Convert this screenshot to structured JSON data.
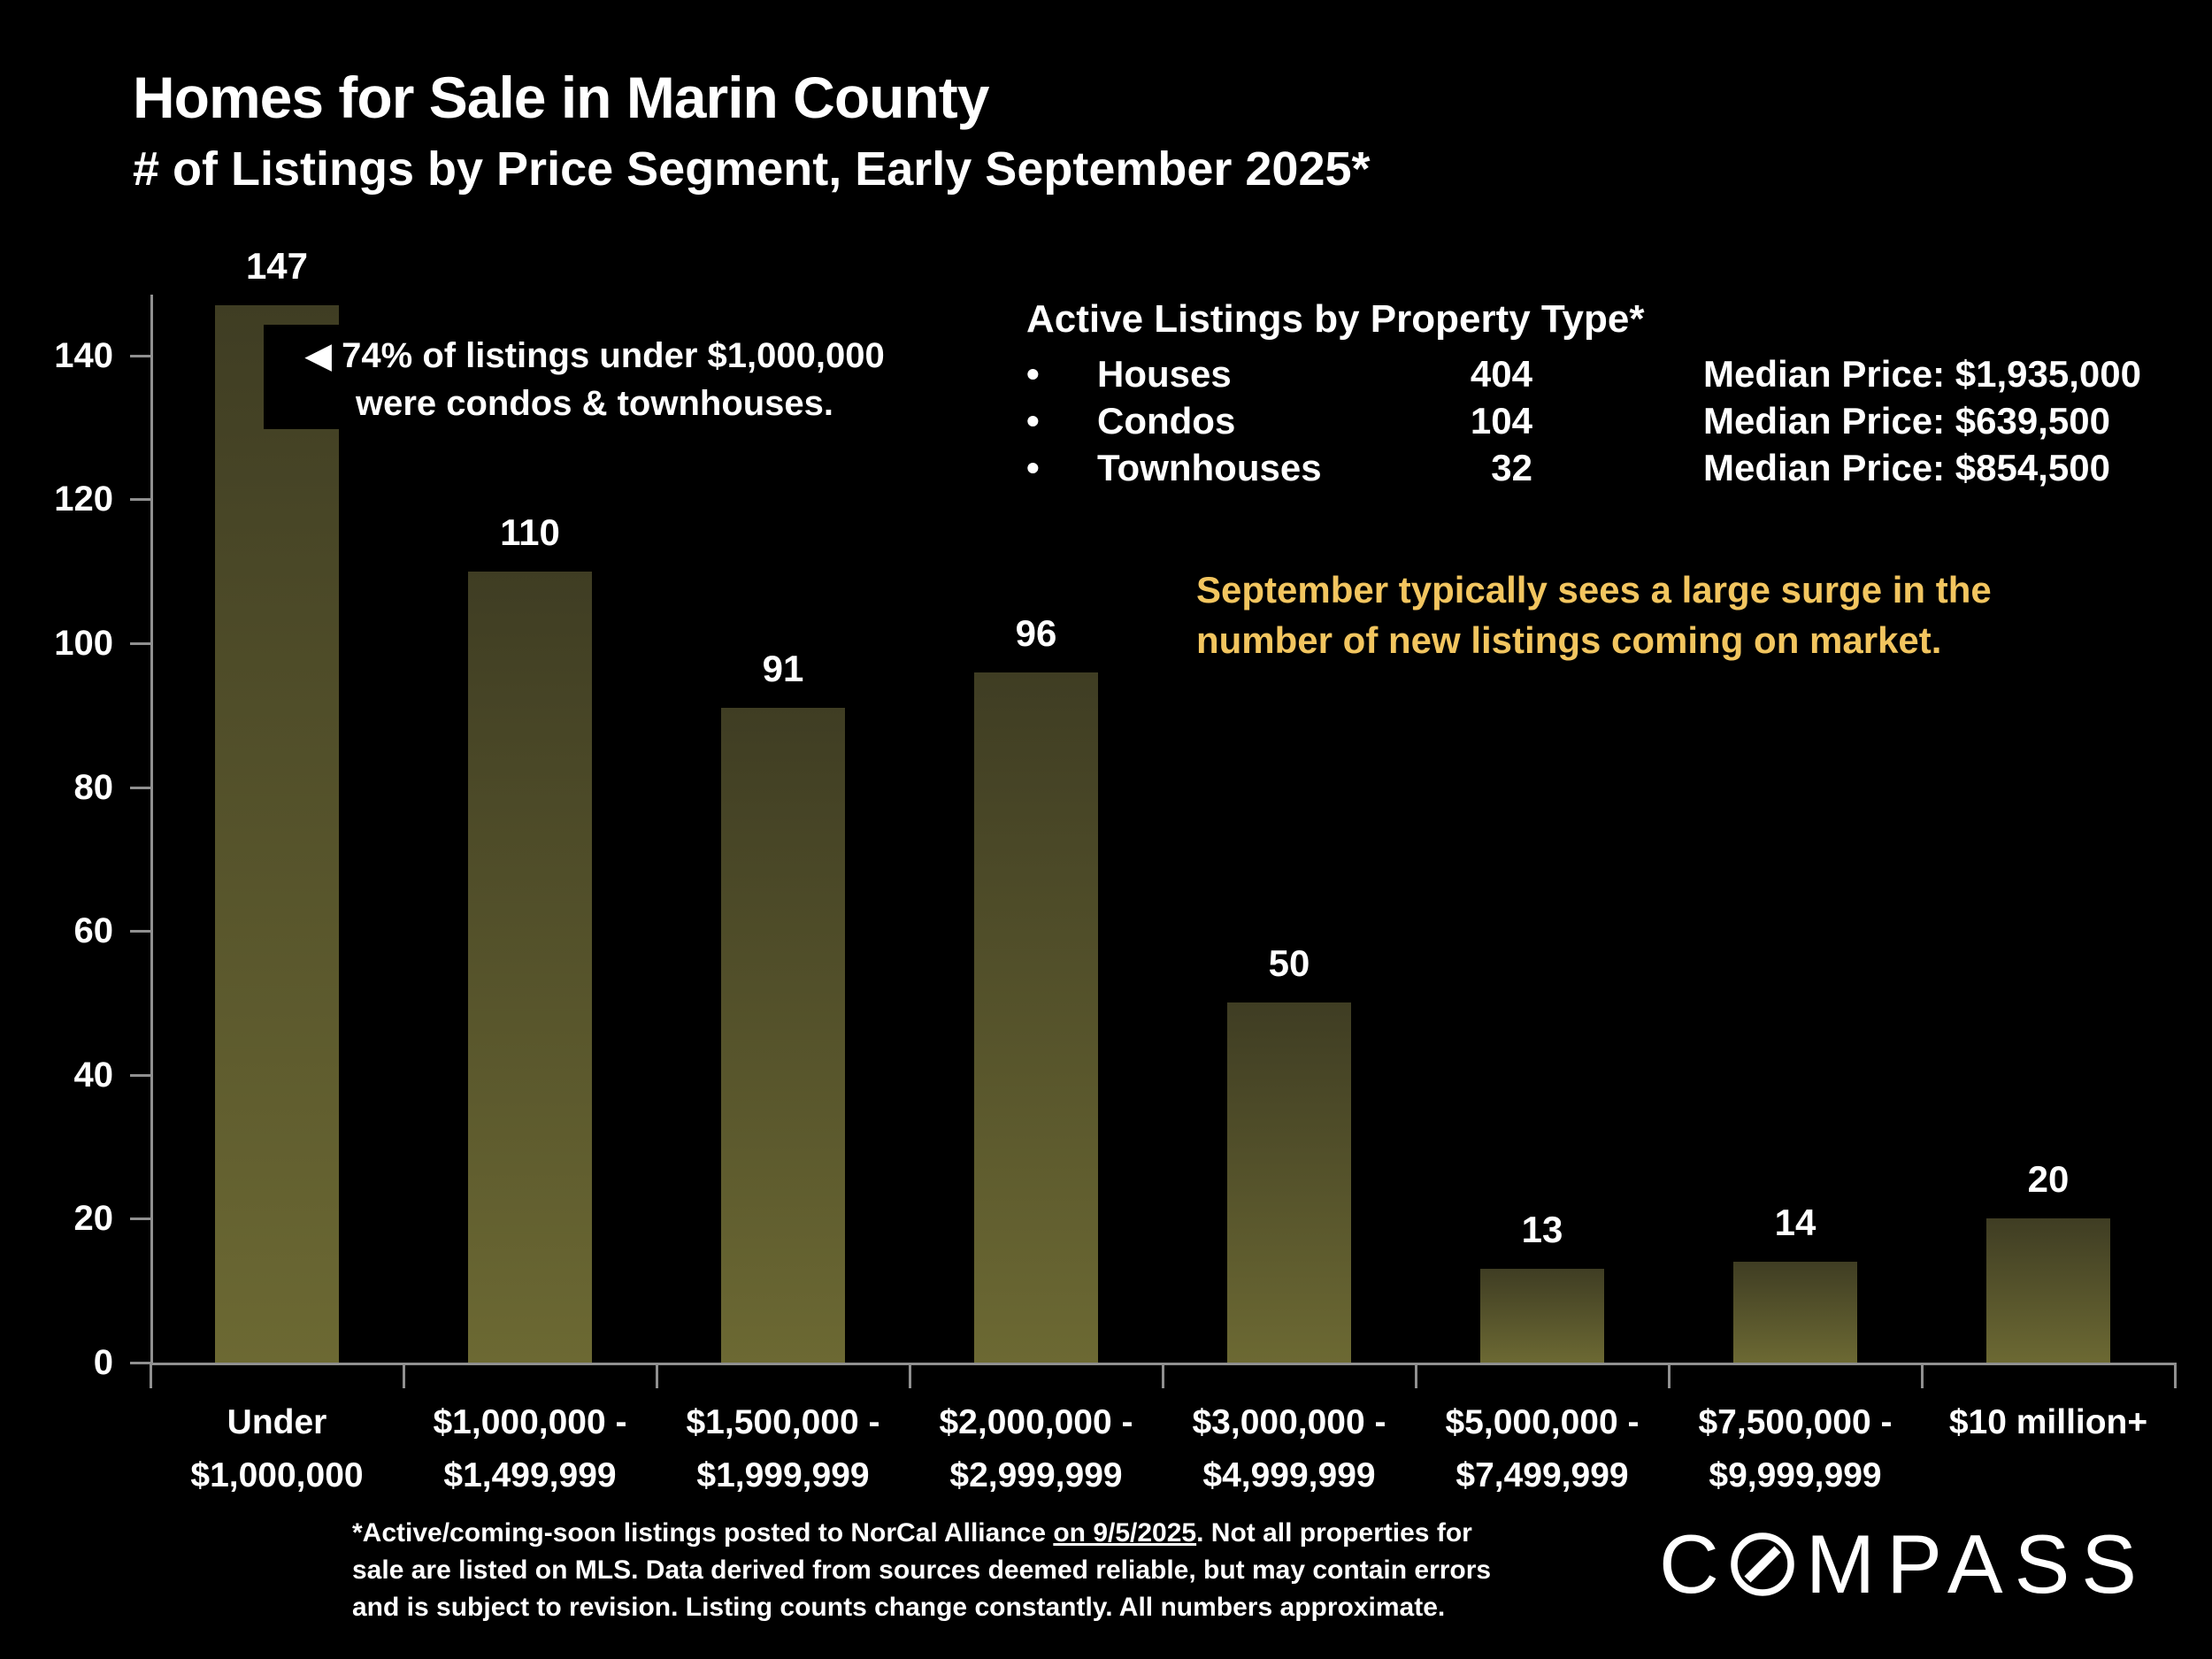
{
  "title": "Homes for Sale in Marin County",
  "subtitle": "# of Listings by Price Segment, Early September 2025*",
  "annotation": {
    "arrow": "◀",
    "line1": "74% of listings under $1,000,000",
    "line2": "were condos & townhouses."
  },
  "property_panel": {
    "title": "Active Listings by Property Type*",
    "rows": [
      {
        "bullet": "•",
        "label": "Houses",
        "count": "404",
        "median": "Median Price: $1,935,000"
      },
      {
        "bullet": "•",
        "label": "Condos",
        "count": "104",
        "median": "Median Price: $639,500"
      },
      {
        "bullet": "•",
        "label": "Townhouses",
        "count": "32",
        "median": "Median Price: $854,500"
      }
    ]
  },
  "note": {
    "line1": "September typically sees a large surge in the",
    "line2": "number of new listings coming on market.",
    "color": "#f2c55f"
  },
  "footnote": {
    "line1_pre": "*Active/coming-soon listings posted to NorCal Alliance ",
    "line1_underline": "on 9/5/2025",
    "line1_post": ". Not all properties for",
    "line2": "sale are listed on MLS.  Data derived from sources deemed reliable, but may contain errors",
    "line3": "and is subject to revision. Listing counts change constantly. All numbers approximate."
  },
  "logo": {
    "letter_c": "C",
    "o_icon": "compass-needle-o",
    "letters_rest": "MPASS"
  },
  "chart_data": {
    "type": "bar",
    "title": "Homes for Sale in Marin County",
    "subtitle": "# of Listings by Price Segment, Early September 2025*",
    "categories": [
      "Under\n$1,000,000",
      "$1,000,000 -\n$1,499,999",
      "$1,500,000 -\n$1,999,999",
      "$2,000,000 -\n$2,999,999",
      "$3,000,000 -\n$4,999,999",
      "$5,000,000 -\n$7,499,999",
      "$7,500,000 -\n$9,999,999",
      "$10 million+"
    ],
    "values": [
      147,
      110,
      91,
      96,
      50,
      13,
      14,
      20
    ],
    "xlabel": "",
    "ylabel": "",
    "ylim": [
      0,
      150
    ],
    "yticks": [
      0,
      20,
      40,
      60,
      80,
      100,
      120,
      140
    ],
    "grid": false,
    "legend": false,
    "value_labels": true,
    "bar_color_top": "#3f3d23",
    "bar_color_bottom": "#6c6933",
    "axis_color": "#909090",
    "value_label_color": "#ffffff"
  }
}
